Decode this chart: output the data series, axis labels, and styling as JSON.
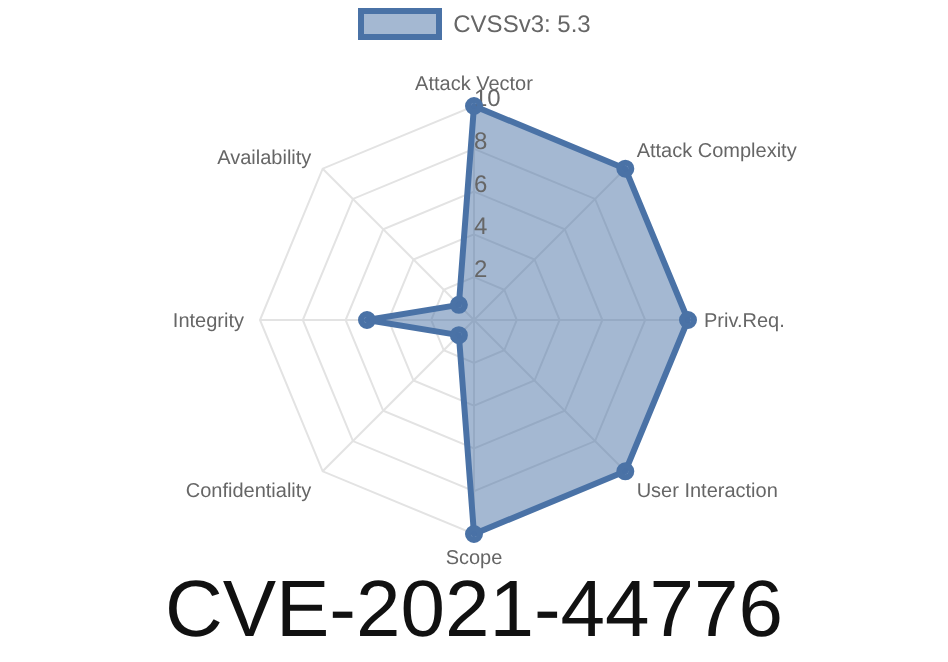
{
  "chart_data": {
    "type": "radar",
    "title": "CVE-2021-44776",
    "categories": [
      "Attack Vector",
      "Attack Complexity",
      "Priv.Req.",
      "User Interaction",
      "Scope",
      "Confidentiality",
      "Integrity",
      "Availability"
    ],
    "series": [
      {
        "name": "CVSSv3: 5.3",
        "color": "#4a72a6",
        "values": [
          10,
          10,
          10,
          10,
          10,
          1,
          5,
          1
        ]
      }
    ],
    "ylim": [
      0,
      10
    ],
    "yticks": [
      2,
      4,
      6,
      8,
      10
    ],
    "grid": true,
    "legend": "top",
    "marker": "circle"
  }
}
